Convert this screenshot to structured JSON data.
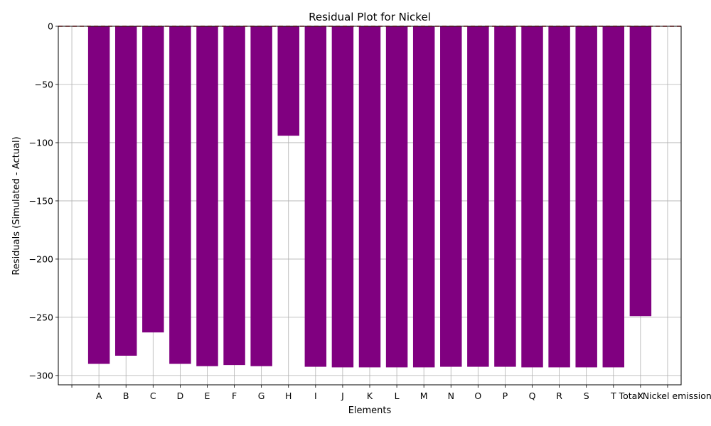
{
  "chart_data": {
    "type": "bar",
    "title": "Residual Plot for Nickel",
    "xlabel": "Elements",
    "ylabel": "Residuals (Simulated - Actual)",
    "categories": [
      "",
      "A",
      "B",
      "C",
      "D",
      "E",
      "F",
      "G",
      "H",
      "I",
      "J",
      "K",
      "L",
      "M",
      "N",
      "O",
      "P",
      "Q",
      "R",
      "S",
      "T",
      "X",
      "Total Nickel emissions"
    ],
    "values": [
      0,
      -290,
      -283,
      -263,
      -290,
      -292,
      -291,
      -292,
      -94,
      -292.5,
      -293,
      -293,
      -293,
      -293,
      -292.5,
      -292.5,
      -292.5,
      -293,
      -293,
      -293,
      -293,
      -249,
      0
    ],
    "ylim": [
      -308,
      0
    ],
    "yticks": [
      0,
      -50,
      -100,
      -150,
      -200,
      -250,
      -300
    ],
    "ytick_labels": [
      "0",
      "−50",
      "−100",
      "−150",
      "−200",
      "−250",
      "−300"
    ],
    "grid": true,
    "bar_color": "#800080",
    "zero_line_color": "#d62728"
  }
}
